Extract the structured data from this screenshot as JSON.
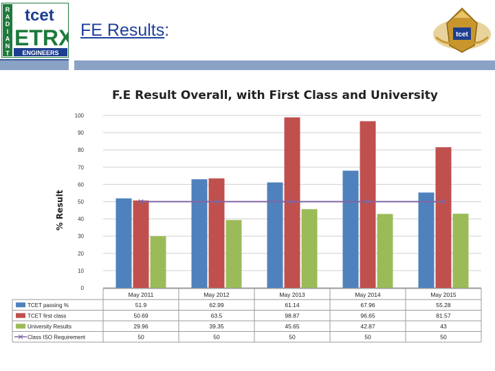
{
  "header": {
    "title_main": "FE Results",
    "title_suffix": ":",
    "logo_left": {
      "side_letters": [
        "R",
        "A",
        "D",
        "I",
        "A",
        "N",
        "T"
      ],
      "top_text": "tcet",
      "big_text": "ETRX",
      "bottom_text": "ENGINEERS"
    },
    "logo_right": {
      "text": "tcet"
    }
  },
  "colors": {
    "band": "#8aa2c6",
    "title": "#1f3f9b",
    "series": [
      "#4f81bd",
      "#c0504d",
      "#9bbb59",
      "#8064a2"
    ]
  },
  "chart_data": {
    "type": "bar",
    "title": "F.E Result Overall, with First Class and University",
    "ylabel": "% Result",
    "xlabel": "",
    "ylim": [
      0,
      100
    ],
    "yticks": [
      0,
      10,
      20,
      30,
      40,
      50,
      60,
      70,
      80,
      90,
      100
    ],
    "grid": true,
    "legend_placement": "data-table-left",
    "categories": [
      "May 2011",
      "May 2012",
      "May 2013",
      "May 2014",
      "May 2015"
    ],
    "series": [
      {
        "name": "TCET passing %",
        "type": "bar",
        "values": [
          51.9,
          62.99,
          61.14,
          67.96,
          55.28
        ],
        "labels": [
          "51.9",
          "62.99",
          "61.14",
          "67.96",
          "55.28"
        ]
      },
      {
        "name": "TCET first class",
        "type": "bar",
        "values": [
          50.69,
          63.5,
          98.87,
          96.65,
          81.57
        ],
        "labels": [
          "50.69",
          "63.5",
          "98.87",
          "96.65",
          "81.57"
        ]
      },
      {
        "name": "University Results",
        "type": "bar",
        "values": [
          29.96,
          39.35,
          45.65,
          42.87,
          43
        ],
        "labels": [
          "29.96",
          "39.35",
          "45.65",
          "42.87",
          "43"
        ]
      },
      {
        "name": "Class ISO Requirement",
        "type": "line",
        "values": [
          50,
          50,
          50,
          50,
          50
        ],
        "labels": [
          "50",
          "50",
          "50",
          "50",
          "50"
        ]
      }
    ]
  }
}
